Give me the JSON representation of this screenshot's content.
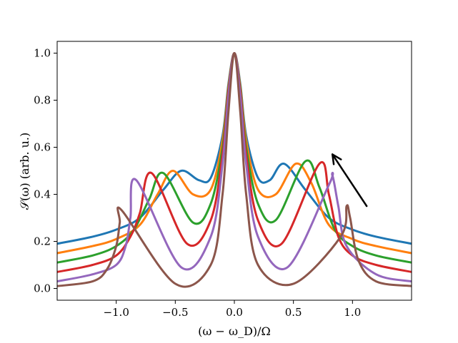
{
  "chart_data": {
    "type": "line",
    "title": "",
    "xlabel": "(ω − ω_D)/Ω",
    "ylabel": "𝒮(ω) (arb. u.)",
    "xlim": [
      -1.5,
      1.5
    ],
    "ylim": [
      -0.05,
      1.05
    ],
    "x_ticks": [
      -1.0,
      -0.5,
      0.0,
      0.5,
      1.0
    ],
    "x_tick_labels": [
      "−1.0",
      "−0.5",
      "0.0",
      "0.5",
      "1.0"
    ],
    "y_ticks": [
      0.0,
      0.2,
      0.4,
      0.6,
      0.8,
      1.0
    ],
    "y_tick_labels": [
      "0.0",
      "0.2",
      "0.4",
      "0.6",
      "0.8",
      "1.0"
    ],
    "grid": false,
    "legend": "none",
    "annotation": {
      "type": "arrow",
      "from": [
        1.12,
        0.35
      ],
      "to": [
        0.83,
        0.57
      ]
    },
    "series": [
      {
        "color": "#1f77b4",
        "x": [
          -1.5,
          -1.2,
          -1.0,
          -0.8,
          -0.6,
          -0.45,
          -0.3,
          -0.2,
          -0.1,
          -0.05,
          0.0,
          0.05,
          0.1,
          0.2,
          0.3,
          0.42,
          0.6,
          0.8,
          1.0,
          1.2,
          1.5
        ],
        "y": [
          0.19,
          0.22,
          0.25,
          0.3,
          0.42,
          0.5,
          0.46,
          0.47,
          0.65,
          0.87,
          1.0,
          0.87,
          0.65,
          0.47,
          0.46,
          0.53,
          0.42,
          0.3,
          0.25,
          0.22,
          0.19
        ]
      },
      {
        "color": "#ff7f0e",
        "x": [
          -1.5,
          -1.2,
          -1.0,
          -0.8,
          -0.65,
          -0.52,
          -0.35,
          -0.2,
          -0.1,
          -0.05,
          0.0,
          0.05,
          0.1,
          0.2,
          0.35,
          0.52,
          0.65,
          0.8,
          1.0,
          1.2,
          1.5
        ],
        "y": [
          0.15,
          0.18,
          0.21,
          0.27,
          0.4,
          0.5,
          0.4,
          0.42,
          0.63,
          0.86,
          1.0,
          0.86,
          0.63,
          0.42,
          0.4,
          0.53,
          0.45,
          0.27,
          0.21,
          0.18,
          0.15
        ]
      },
      {
        "color": "#2ca02c",
        "x": [
          -1.5,
          -1.2,
          -1.0,
          -0.85,
          -0.72,
          -0.6,
          -0.35,
          -0.2,
          -0.1,
          -0.05,
          0.0,
          0.05,
          0.1,
          0.2,
          0.35,
          0.6,
          0.72,
          0.85,
          1.0,
          1.2,
          1.5
        ],
        "y": [
          0.11,
          0.14,
          0.18,
          0.25,
          0.38,
          0.49,
          0.28,
          0.36,
          0.6,
          0.85,
          1.0,
          0.85,
          0.6,
          0.36,
          0.29,
          0.54,
          0.43,
          0.25,
          0.18,
          0.14,
          0.11
        ]
      },
      {
        "color": "#d62728",
        "x": [
          -1.5,
          -1.2,
          -1.0,
          -0.88,
          -0.8,
          -0.7,
          -0.4,
          -0.2,
          -0.1,
          -0.05,
          0.0,
          0.05,
          0.1,
          0.2,
          0.4,
          0.72,
          0.8,
          0.88,
          1.0,
          1.2,
          1.5
        ],
        "y": [
          0.07,
          0.1,
          0.14,
          0.22,
          0.32,
          0.49,
          0.19,
          0.29,
          0.57,
          0.84,
          1.0,
          0.84,
          0.57,
          0.29,
          0.19,
          0.53,
          0.4,
          0.22,
          0.14,
          0.1,
          0.07
        ]
      },
      {
        "color": "#9467bd",
        "x": [
          -1.5,
          -1.2,
          -1.0,
          -0.92,
          -0.88,
          -0.83,
          -0.45,
          -0.2,
          -0.1,
          -0.05,
          0.0,
          0.05,
          0.1,
          0.2,
          0.45,
          0.8,
          0.83,
          0.88,
          0.95,
          1.2,
          1.5
        ],
        "y": [
          0.03,
          0.06,
          0.1,
          0.18,
          0.3,
          0.46,
          0.09,
          0.22,
          0.53,
          0.82,
          1.0,
          0.82,
          0.53,
          0.22,
          0.09,
          0.44,
          0.48,
          0.35,
          0.18,
          0.06,
          0.03
        ]
      },
      {
        "color": "#8c564b",
        "x": [
          -1.5,
          -1.2,
          -1.08,
          -1.0,
          -0.97,
          -0.95,
          -0.5,
          -0.2,
          -0.1,
          -0.05,
          0.0,
          0.05,
          0.1,
          0.2,
          0.5,
          0.9,
          0.95,
          0.98,
          1.05,
          1.2,
          1.5
        ],
        "y": [
          0.01,
          0.03,
          0.08,
          0.18,
          0.28,
          0.33,
          0.02,
          0.1,
          0.4,
          0.75,
          1.0,
          0.75,
          0.4,
          0.1,
          0.02,
          0.22,
          0.35,
          0.3,
          0.12,
          0.03,
          0.01
        ]
      }
    ]
  }
}
